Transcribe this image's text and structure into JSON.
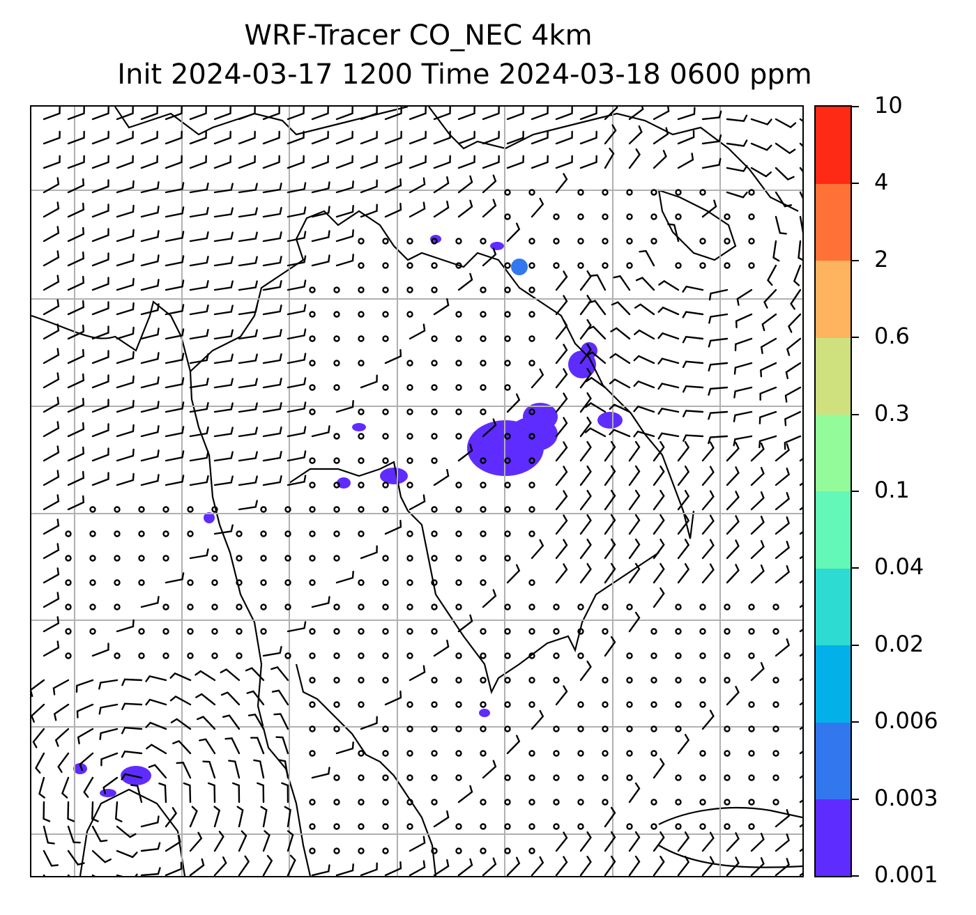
{
  "title": {
    "line1": "WRF-Tracer CO_NEC 4km",
    "line2": "Init 2024-03-17 1200 Time 2024-03-18 0600 ppm"
  },
  "map": {
    "gridlines": true,
    "gridline_color": "#b0b0b0",
    "coastline_color": "#000000",
    "wind_barbs": true,
    "calm_wind_circles": true,
    "tracer_plumes": [
      {
        "region": "north-center",
        "level_index": 0
      },
      {
        "region": "center",
        "level_index": 0
      },
      {
        "region": "east-center",
        "level_index": 0
      },
      {
        "region": "southwest",
        "level_index": 0
      }
    ]
  },
  "colorbar": {
    "levels": [
      "0.001",
      "0.003",
      "0.006",
      "0.02",
      "0.04",
      "0.1",
      "0.3",
      "0.6",
      "2",
      "4",
      "10"
    ],
    "colors": [
      "#5f2cff",
      "#3277ee",
      "#03b1e8",
      "#2edbd2",
      "#63f7b8",
      "#94fb9a",
      "#cfe07f",
      "#feb35e",
      "#ff7136",
      "#ff2a15"
    ]
  }
}
